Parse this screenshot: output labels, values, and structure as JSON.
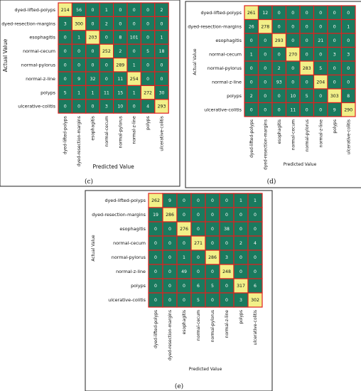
{
  "colors": {
    "cell_fill": "#1a7a5e",
    "diag_fill": "#f2f089",
    "highlight_fill": "#c9dc7c",
    "cell_border": "#e02020",
    "text_light": "#ffffff",
    "text_dark": "#111111"
  },
  "chart_data": [
    {
      "type": "heatmap",
      "panel": "(c)",
      "xlabel": "Predicted Value",
      "ylabel": "Actual Value",
      "rows": [
        "dyed-lifted-polyps",
        "dyed-resection-margins",
        "esophagitis",
        "normal-cecum",
        "normal-pylorus",
        "normal-z-line",
        "polyps",
        "ulcerative-colitis"
      ],
      "cols": [
        "dyed-lifted-polyps",
        "dyed-resection-margins",
        "esophagitis",
        "normal-cecum",
        "normal-pylorus",
        "normal-z-line",
        "polyps",
        "ulcerative-colitis"
      ],
      "values": [
        [
          214,
          56,
          0,
          1,
          0,
          0,
          0,
          2
        ],
        [
          3,
          300,
          0,
          2,
          0,
          0,
          0,
          0
        ],
        [
          0,
          1,
          203,
          0,
          8,
          101,
          0,
          1
        ],
        [
          0,
          0,
          0,
          252,
          2,
          0,
          5,
          18
        ],
        [
          0,
          0,
          0,
          0,
          289,
          1,
          0,
          0
        ],
        [
          0,
          9,
          32,
          0,
          11,
          254,
          0,
          0
        ],
        [
          5,
          1,
          1,
          11,
          15,
          1,
          272,
          30
        ],
        [
          0,
          0,
          0,
          3,
          10,
          0,
          4,
          293
        ]
      ]
    },
    {
      "type": "heatmap",
      "panel": "(d)",
      "xlabel": "Predicted Value",
      "ylabel": "Actual Value",
      "rows": [
        "dyed-lifted-polyps",
        "dyed-resection-margins",
        "esophagitis",
        "normal-cecum",
        "normal-pylorus",
        "normal-z-line",
        "polyps",
        "ulcerative-colitis"
      ],
      "cols": [
        "dyed-lifted-polyps",
        "dyed-resection-margins",
        "esophagitis",
        "normal-cecum",
        "normal-pylorus",
        "normal-z-line",
        "polyps",
        "ulcerative-colitis"
      ],
      "values": [
        [
          261,
          12,
          0,
          0,
          0,
          0,
          0,
          0
        ],
        [
          26,
          278,
          0,
          0,
          0,
          0,
          0,
          1
        ],
        [
          0,
          0,
          293,
          0,
          0,
          21,
          0,
          0
        ],
        [
          1,
          0,
          0,
          270,
          0,
          0,
          3,
          3
        ],
        [
          0,
          0,
          2,
          0,
          283,
          5,
          0,
          0
        ],
        [
          0,
          0,
          93,
          0,
          0,
          204,
          0,
          0
        ],
        [
          2,
          0,
          0,
          10,
          5,
          0,
          303,
          8
        ],
        [
          0,
          0,
          0,
          11,
          0,
          0,
          9,
          290
        ]
      ]
    },
    {
      "type": "heatmap",
      "panel": "(e)",
      "xlabel": "Predicted Value",
      "ylabel": "Actual Value",
      "rows": [
        "dyed-lifted-polyps",
        "dyed-resection-margins",
        "esophagitis",
        "normal-cecum",
        "normal-pylorus",
        "normal-z-line",
        "polyps",
        "ulcerative-colitis"
      ],
      "cols": [
        "dyed-lifted-polyps",
        "dyed-resection-margins",
        "esophagitis",
        "normal-cecum",
        "normal-pylorus",
        "normal-z-line",
        "polyps",
        "ulcerative-colitis"
      ],
      "values": [
        [
          262,
          9,
          0,
          0,
          0,
          0,
          1,
          1
        ],
        [
          19,
          286,
          0,
          0,
          0,
          0,
          0,
          0
        ],
        [
          0,
          0,
          276,
          0,
          0,
          38,
          0,
          0
        ],
        [
          0,
          0,
          0,
          271,
          0,
          0,
          2,
          4
        ],
        [
          0,
          0,
          1,
          0,
          286,
          3,
          0,
          0
        ],
        [
          0,
          0,
          49,
          0,
          0,
          248,
          0,
          0
        ],
        [
          0,
          0,
          0,
          6,
          5,
          0,
          317,
          6
        ],
        [
          0,
          0,
          0,
          5,
          0,
          0,
          3,
          302
        ]
      ]
    }
  ]
}
